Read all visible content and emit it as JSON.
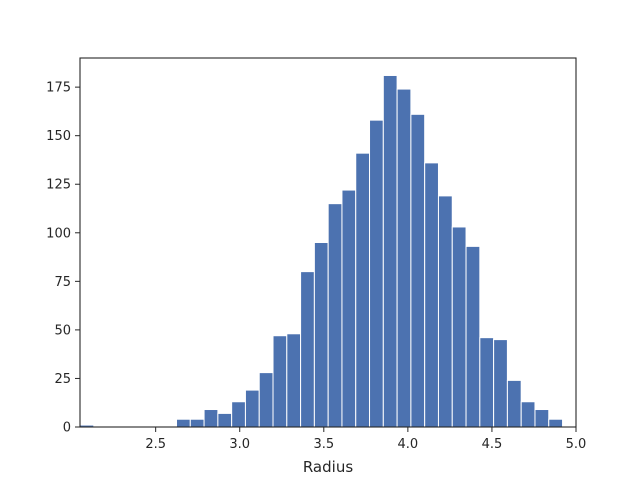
{
  "chart_data": {
    "type": "bar",
    "subtype": "histogram",
    "title": "",
    "xlabel": "Radius",
    "ylabel": "",
    "xlim": [
      2.05,
      5.0
    ],
    "ylim": [
      0,
      190
    ],
    "xticks": [
      2.5,
      3.0,
      3.5,
      4.0,
      4.5,
      5.0
    ],
    "xtick_labels": [
      "2.5",
      "3.0",
      "3.5",
      "4.0",
      "4.5",
      "5.0"
    ],
    "yticks": [
      0,
      25,
      50,
      75,
      100,
      125,
      150,
      175
    ],
    "ytick_labels": [
      "0",
      "25",
      "50",
      "75",
      "100",
      "125",
      "150",
      "175"
    ],
    "grid": false,
    "bar_color": "#4c72b0",
    "bins": [
      {
        "start": 2.05,
        "end": 2.132,
        "count": 1
      },
      {
        "start": 2.132,
        "end": 2.214,
        "count": 0
      },
      {
        "start": 2.214,
        "end": 2.296,
        "count": 0
      },
      {
        "start": 2.296,
        "end": 2.378,
        "count": 0
      },
      {
        "start": 2.378,
        "end": 2.46,
        "count": 0
      },
      {
        "start": 2.46,
        "end": 2.542,
        "count": 0
      },
      {
        "start": 2.542,
        "end": 2.624,
        "count": 0
      },
      {
        "start": 2.624,
        "end": 2.706,
        "count": 4
      },
      {
        "start": 2.706,
        "end": 2.788,
        "count": 4
      },
      {
        "start": 2.788,
        "end": 2.87,
        "count": 9
      },
      {
        "start": 2.87,
        "end": 2.952,
        "count": 7
      },
      {
        "start": 2.952,
        "end": 3.034,
        "count": 13
      },
      {
        "start": 3.034,
        "end": 3.116,
        "count": 19
      },
      {
        "start": 3.116,
        "end": 3.198,
        "count": 28
      },
      {
        "start": 3.198,
        "end": 3.28,
        "count": 47
      },
      {
        "start": 3.28,
        "end": 3.362,
        "count": 48
      },
      {
        "start": 3.362,
        "end": 3.444,
        "count": 80
      },
      {
        "start": 3.444,
        "end": 3.526,
        "count": 95
      },
      {
        "start": 3.526,
        "end": 3.608,
        "count": 115
      },
      {
        "start": 3.608,
        "end": 3.69,
        "count": 122
      },
      {
        "start": 3.69,
        "end": 3.772,
        "count": 141
      },
      {
        "start": 3.772,
        "end": 3.854,
        "count": 158
      },
      {
        "start": 3.854,
        "end": 3.936,
        "count": 181
      },
      {
        "start": 3.936,
        "end": 4.018,
        "count": 174
      },
      {
        "start": 4.018,
        "end": 4.1,
        "count": 161
      },
      {
        "start": 4.1,
        "end": 4.182,
        "count": 136
      },
      {
        "start": 4.182,
        "end": 4.264,
        "count": 119
      },
      {
        "start": 4.264,
        "end": 4.346,
        "count": 103
      },
      {
        "start": 4.346,
        "end": 4.428,
        "count": 93
      },
      {
        "start": 4.428,
        "end": 4.51,
        "count": 46
      },
      {
        "start": 4.51,
        "end": 4.592,
        "count": 45
      },
      {
        "start": 4.592,
        "end": 4.674,
        "count": 24
      },
      {
        "start": 4.674,
        "end": 4.756,
        "count": 13
      },
      {
        "start": 4.756,
        "end": 4.838,
        "count": 9
      },
      {
        "start": 4.838,
        "end": 4.92,
        "count": 4
      }
    ]
  }
}
